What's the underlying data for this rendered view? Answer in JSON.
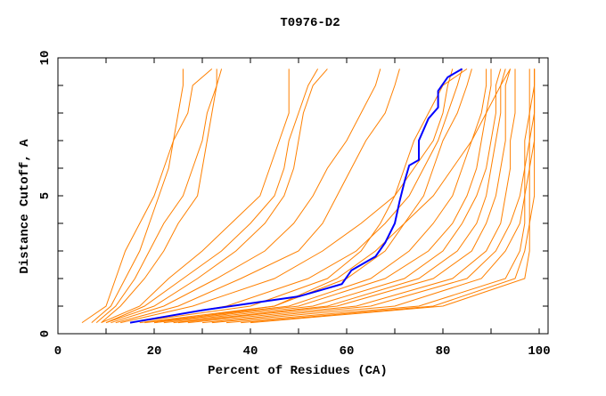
{
  "chart_data": {
    "type": "line",
    "title": "T0976-D2",
    "xlabel": "Percent of Residues (CA)",
    "ylabel": "Distance Cutoff, A",
    "xlim": [
      0,
      100
    ],
    "ylim": [
      0,
      10
    ],
    "xticks": [
      0,
      20,
      40,
      60,
      80,
      100
    ],
    "yticks": [
      0,
      5,
      10
    ],
    "grid": false,
    "colors": {
      "highlight": "#0000ff",
      "others": "#ff8000"
    },
    "highlight": {
      "x": [
        15,
        20,
        30,
        40,
        50,
        55,
        59,
        61,
        66,
        68,
        70,
        71,
        72,
        73,
        75,
        75,
        77,
        79,
        79,
        81,
        84
      ],
      "y": [
        0.4,
        0.55,
        0.85,
        1.1,
        1.35,
        1.6,
        1.8,
        2.3,
        2.8,
        3.3,
        4,
        4.8,
        5.5,
        6.1,
        6.3,
        7,
        7.8,
        8.2,
        8.8,
        9.3,
        9.6
      ]
    },
    "others_y": [
      0.4,
      1,
      2,
      3,
      4,
      5,
      6,
      7,
      8,
      9,
      9.6
    ],
    "others_x": [
      [
        5,
        10,
        12,
        14,
        17,
        20,
        22,
        24,
        25,
        26,
        26
      ],
      [
        7,
        11,
        14,
        17,
        19,
        21,
        23,
        24,
        27,
        28,
        32
      ],
      [
        8,
        12,
        16,
        19,
        22,
        26,
        28,
        30,
        31,
        33,
        34
      ],
      [
        9,
        13,
        18,
        22,
        25,
        29,
        30,
        31,
        32,
        33,
        33
      ],
      [
        9,
        17,
        23,
        30,
        36,
        42,
        44,
        46,
        48,
        48,
        48
      ],
      [
        10,
        18,
        26,
        34,
        40,
        45,
        47,
        48,
        50,
        52,
        54
      ],
      [
        10,
        20,
        29,
        37,
        43,
        47,
        49,
        50,
        51,
        53,
        56
      ],
      [
        11,
        22,
        33,
        43,
        49,
        53,
        56,
        60,
        63,
        66,
        67
      ],
      [
        12,
        25,
        38,
        50,
        55,
        58,
        61,
        64,
        68,
        70,
        71
      ],
      [
        13,
        28,
        45,
        55,
        63,
        70,
        74,
        78,
        80,
        81,
        82
      ],
      [
        15,
        40,
        56,
        63,
        67,
        70,
        72,
        74,
        77,
        80,
        85
      ],
      [
        17,
        45,
        60,
        68,
        72,
        76,
        78,
        80,
        83,
        85,
        86
      ],
      [
        18,
        48,
        65,
        73,
        78,
        82,
        84,
        86,
        88,
        89,
        89
      ],
      [
        20,
        50,
        68,
        77,
        82,
        85,
        87,
        88,
        89,
        90,
        90
      ],
      [
        22,
        53,
        72,
        80,
        84,
        87,
        89,
        90,
        91,
        91,
        92
      ],
      [
        24,
        56,
        75,
        83,
        87,
        89,
        90,
        91,
        92,
        92,
        93
      ],
      [
        25,
        58,
        78,
        86,
        89,
        91,
        92,
        93,
        93,
        93,
        94
      ],
      [
        27,
        62,
        82,
        89,
        92,
        93,
        94,
        94,
        95,
        95,
        95
      ],
      [
        30,
        65,
        85,
        91,
        94,
        96,
        97,
        97,
        98,
        98,
        98
      ],
      [
        32,
        70,
        88,
        93,
        96,
        97,
        98,
        98,
        99,
        99,
        99
      ],
      [
        35,
        75,
        93,
        96,
        97,
        97,
        97,
        98,
        98,
        99,
        99
      ],
      [
        38,
        78,
        95,
        97,
        98,
        98,
        98,
        99,
        99,
        99,
        99
      ],
      [
        40,
        80,
        97,
        98,
        98,
        99,
        99,
        99,
        99,
        99,
        99
      ],
      [
        20,
        45,
        58,
        66,
        72,
        78,
        82,
        86,
        89,
        92,
        94
      ],
      [
        15,
        35,
        52,
        62,
        68,
        73,
        76,
        79,
        81,
        83,
        84
      ]
    ]
  }
}
